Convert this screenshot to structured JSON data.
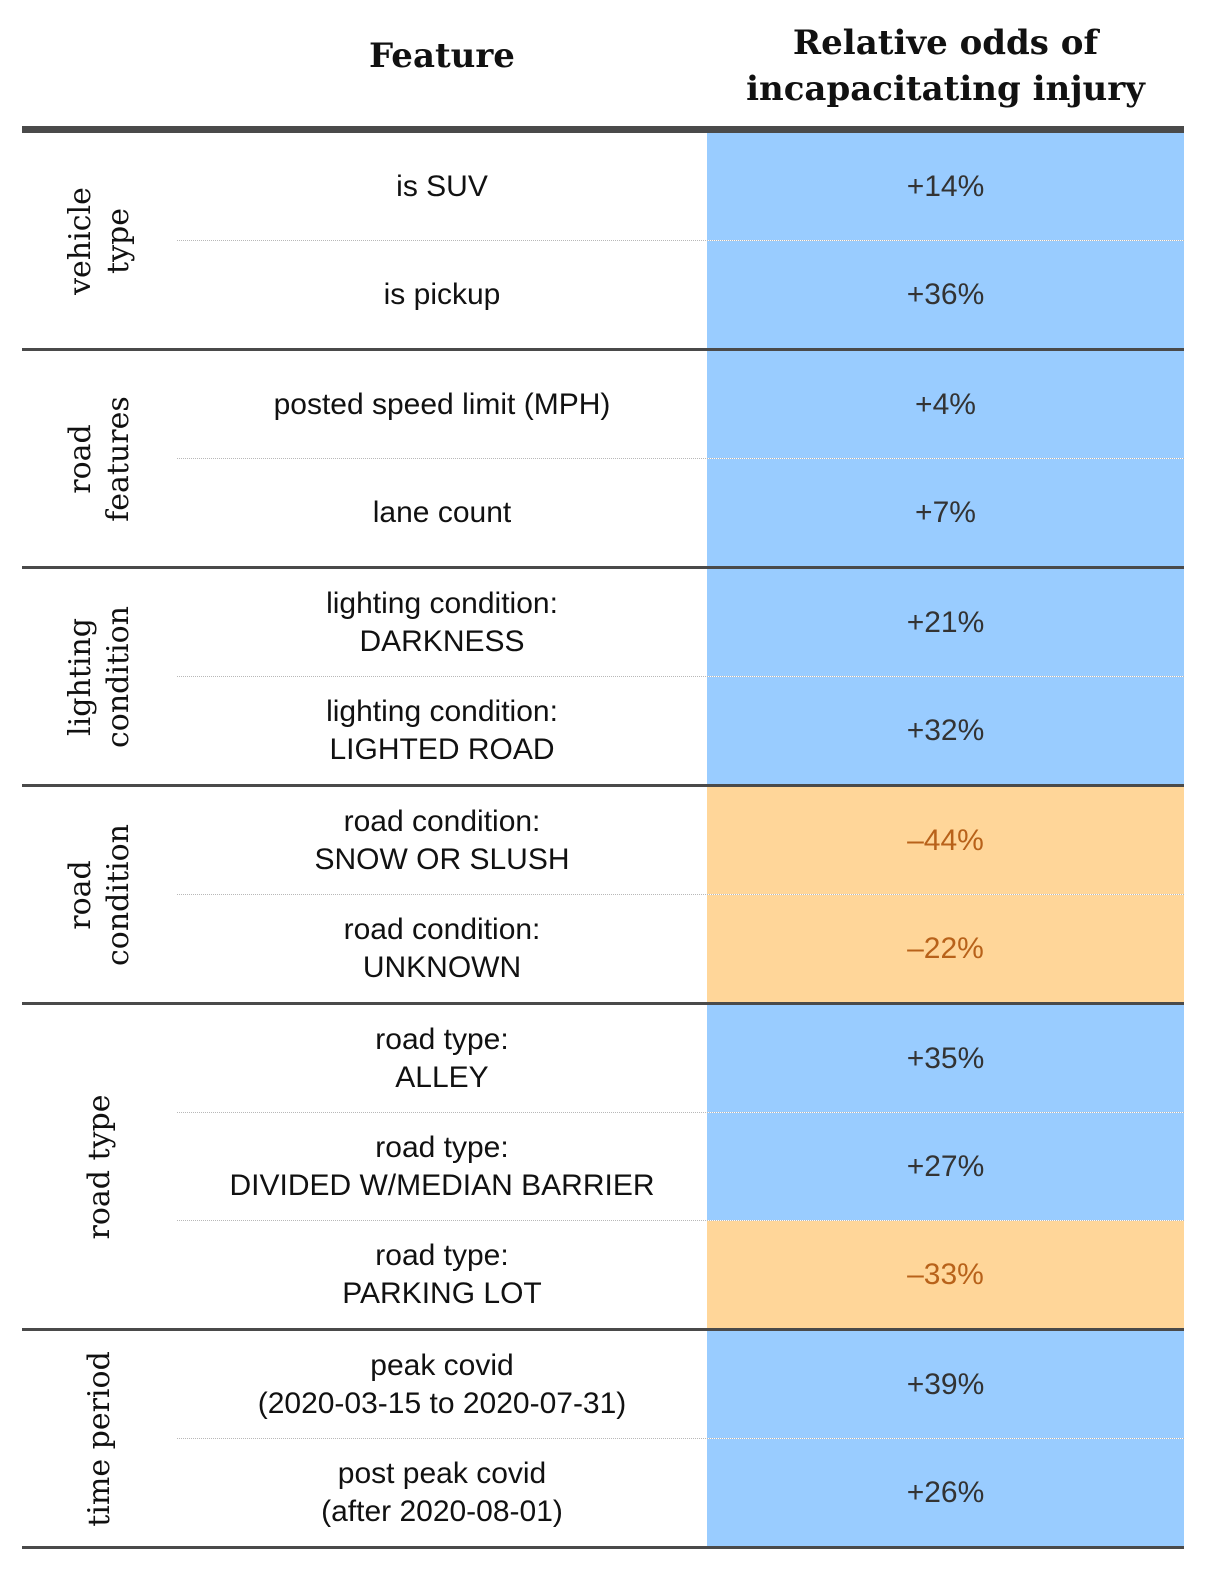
{
  "colors": {
    "positive_bg": "#99ccff",
    "negative_bg": "#ffd699",
    "negative_text": "#b8621a"
  },
  "header": {
    "feature": "Feature",
    "odds": "Relative odds of\nincapacitating injury"
  },
  "chart_data": {
    "type": "table",
    "columns": [
      "Feature",
      "Relative odds of incapacitating injury"
    ],
    "groups": [
      {
        "label": "vehicle\ntype",
        "rows": [
          {
            "feature": "is SUV",
            "value_label": "+14%",
            "value": 14
          },
          {
            "feature": "is pickup",
            "value_label": "+36%",
            "value": 36
          }
        ]
      },
      {
        "label": "road\nfeatures",
        "rows": [
          {
            "feature": "posted speed limit (MPH)",
            "value_label": "+4%",
            "value": 4
          },
          {
            "feature": "lane count",
            "value_label": "+7%",
            "value": 7
          }
        ]
      },
      {
        "label": "lighting\ncondition",
        "rows": [
          {
            "feature": "lighting condition:\nDARKNESS",
            "value_label": "+21%",
            "value": 21
          },
          {
            "feature": "lighting condition:\nLIGHTED ROAD",
            "value_label": "+32%",
            "value": 32
          }
        ]
      },
      {
        "label": "road\ncondition",
        "rows": [
          {
            "feature": "road condition:\nSNOW OR SLUSH",
            "value_label": "–44%",
            "value": -44
          },
          {
            "feature": "road condition:\nUNKNOWN",
            "value_label": "–22%",
            "value": -22
          }
        ]
      },
      {
        "label": "road type",
        "rows": [
          {
            "feature": "road type:\nALLEY",
            "value_label": "+35%",
            "value": 35
          },
          {
            "feature": "road type:\nDIVIDED W/MEDIAN BARRIER",
            "value_label": "+27%",
            "value": 27
          },
          {
            "feature": "road type:\nPARKING LOT",
            "value_label": "–33%",
            "value": -33
          }
        ]
      },
      {
        "label": "time period",
        "rows": [
          {
            "feature": "peak covid\n(2020-03-15 to 2020-07-31)",
            "value_label": "+39%",
            "value": 39
          },
          {
            "feature": "post peak covid\n(after 2020-08-01)",
            "value_label": "+26%",
            "value": 26
          }
        ]
      }
    ]
  }
}
